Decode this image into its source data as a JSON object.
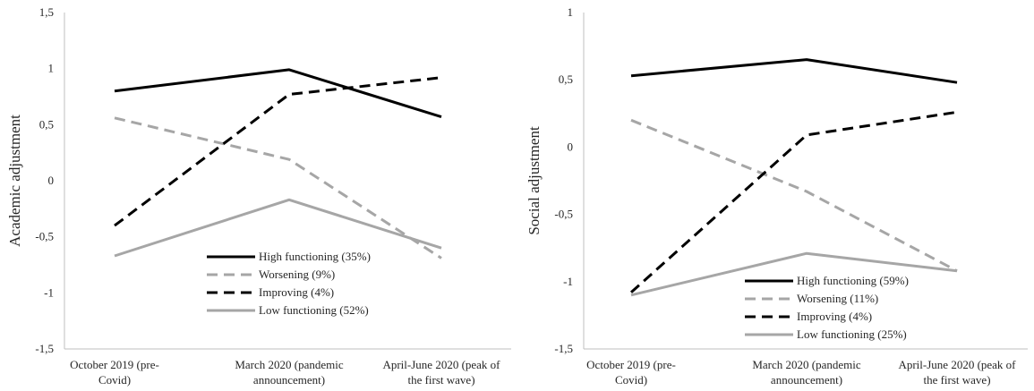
{
  "chart_data": [
    {
      "type": "line",
      "ylabel": "Academic adjustment",
      "xlabel": "",
      "ylim": [
        -1.5,
        1.5
      ],
      "yticks": [
        "1,5",
        "1",
        "0,5",
        "0",
        "-0,5",
        "-1",
        "-1,5"
      ],
      "categories": [
        [
          "October 2019 (pre-",
          "Covid)"
        ],
        [
          "March 2020 (pandemic",
          "announcement)"
        ],
        [
          "April-June 2020 (peak of",
          "the first wave)"
        ]
      ],
      "grid": false,
      "legend_position": "bottom-center",
      "series": [
        {
          "name": "High functioning (35%)",
          "values": [
            0.8,
            0.99,
            0.57
          ],
          "color": "#000000",
          "dash": "solid"
        },
        {
          "name": "Worsening (9%)",
          "values": [
            0.56,
            0.19,
            -0.69
          ],
          "color": "#a6a6a6",
          "dash": "dashed"
        },
        {
          "name": "Improving (4%)",
          "values": [
            -0.4,
            0.77,
            0.92
          ],
          "color": "#000000",
          "dash": "dashed"
        },
        {
          "name": "Low functioning (52%)",
          "values": [
            -0.67,
            -0.17,
            -0.6
          ],
          "color": "#a6a6a6",
          "dash": "solid"
        }
      ]
    },
    {
      "type": "line",
      "ylabel": "Social adjustment",
      "xlabel": "",
      "ylim": [
        -1.5,
        1
      ],
      "yticks": [
        "1",
        "0,5",
        "0",
        "-0,5",
        "-1",
        "-1,5"
      ],
      "categories": [
        [
          "October 2019 (pre-",
          "Covid)"
        ],
        [
          "March 2020 (pandemic",
          "announcement)"
        ],
        [
          "April-June 2020 (peak of",
          "the first wave)"
        ]
      ],
      "grid": false,
      "legend_position": "bottom-center",
      "series": [
        {
          "name": "High functioning (59%)",
          "values": [
            0.53,
            0.65,
            0.48
          ],
          "color": "#000000",
          "dash": "solid"
        },
        {
          "name": "Worsening (11%)",
          "values": [
            0.2,
            -0.33,
            -0.92
          ],
          "color": "#a6a6a6",
          "dash": "dashed"
        },
        {
          "name": "Improving (4%)",
          "values": [
            -1.08,
            0.09,
            0.26
          ],
          "color": "#000000",
          "dash": "dashed"
        },
        {
          "name": "Low functioning (25%)",
          "values": [
            -1.1,
            -0.79,
            -0.92
          ],
          "color": "#a6a6a6",
          "dash": "solid"
        }
      ]
    }
  ]
}
